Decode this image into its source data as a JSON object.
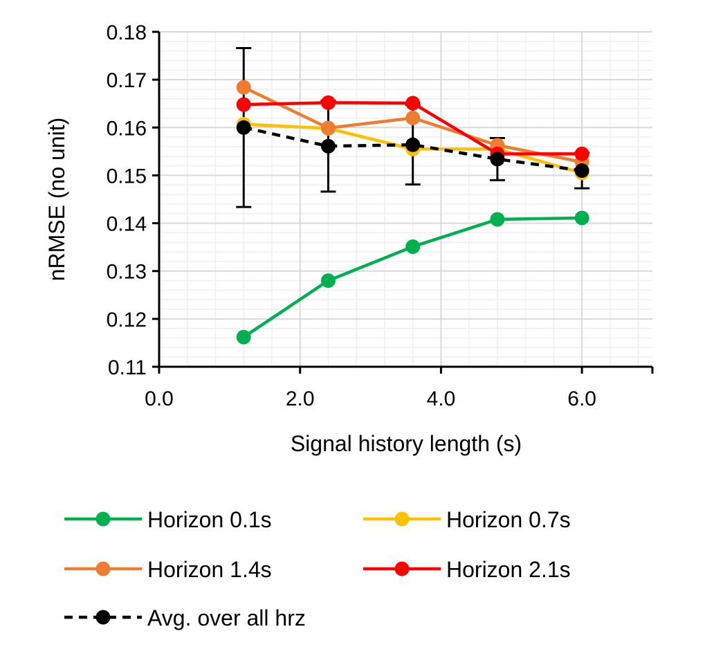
{
  "chart_data": {
    "type": "line",
    "title": "",
    "xlabel": "Signal history length (s)",
    "ylabel": "nRMSE (no unit)",
    "xlim": [
      0,
      7
    ],
    "ylim": [
      0.11,
      0.18
    ],
    "x_major_ticks": [
      0,
      2,
      4,
      6
    ],
    "x_tick_labels": [
      "0.0",
      "2.0",
      "4.0",
      "6.0"
    ],
    "y_major_ticks": [
      0.11,
      0.12,
      0.13,
      0.14,
      0.15,
      0.16,
      0.17,
      0.18
    ],
    "y_tick_labels": [
      "0.11",
      "0.12",
      "0.13",
      "0.14",
      "0.15",
      "0.16",
      "0.17",
      "0.18"
    ],
    "x_minor_step": 0.4,
    "y_minor_step": 0.002,
    "grid": true,
    "legend_position": "bottom",
    "x": [
      1.2,
      2.4,
      3.6,
      4.8,
      6.0
    ],
    "series": [
      {
        "name": "Horizon 0.1s",
        "color": "#00b050",
        "dashed": false,
        "values": [
          0.1162,
          0.128,
          0.1351,
          0.1408,
          0.1411
        ]
      },
      {
        "name": "Horizon 0.7s",
        "color": "#ffc000",
        "dashed": false,
        "values": [
          0.1607,
          0.1598,
          0.1555,
          0.1555,
          0.1505
        ]
      },
      {
        "name": "Horizon 1.4s",
        "color": "#ed7d31",
        "dashed": false,
        "values": [
          0.1684,
          0.1599,
          0.162,
          0.1563,
          0.1528
        ]
      },
      {
        "name": "Horizon 2.1s",
        "color": "#ff0000",
        "dashed": false,
        "values": [
          0.1648,
          0.1652,
          0.1651,
          0.1545,
          0.1545
        ]
      },
      {
        "name": "Avg. over all hrz",
        "color": "#000000",
        "dashed": true,
        "values": [
          0.16,
          0.1561,
          0.1564,
          0.1534,
          0.151
        ],
        "error_low": [
          0.1434,
          0.1466,
          0.1481,
          0.149,
          0.1473
        ],
        "error_high": [
          0.1766,
          0.1656,
          0.1647,
          0.1578,
          0.1547
        ]
      }
    ]
  }
}
